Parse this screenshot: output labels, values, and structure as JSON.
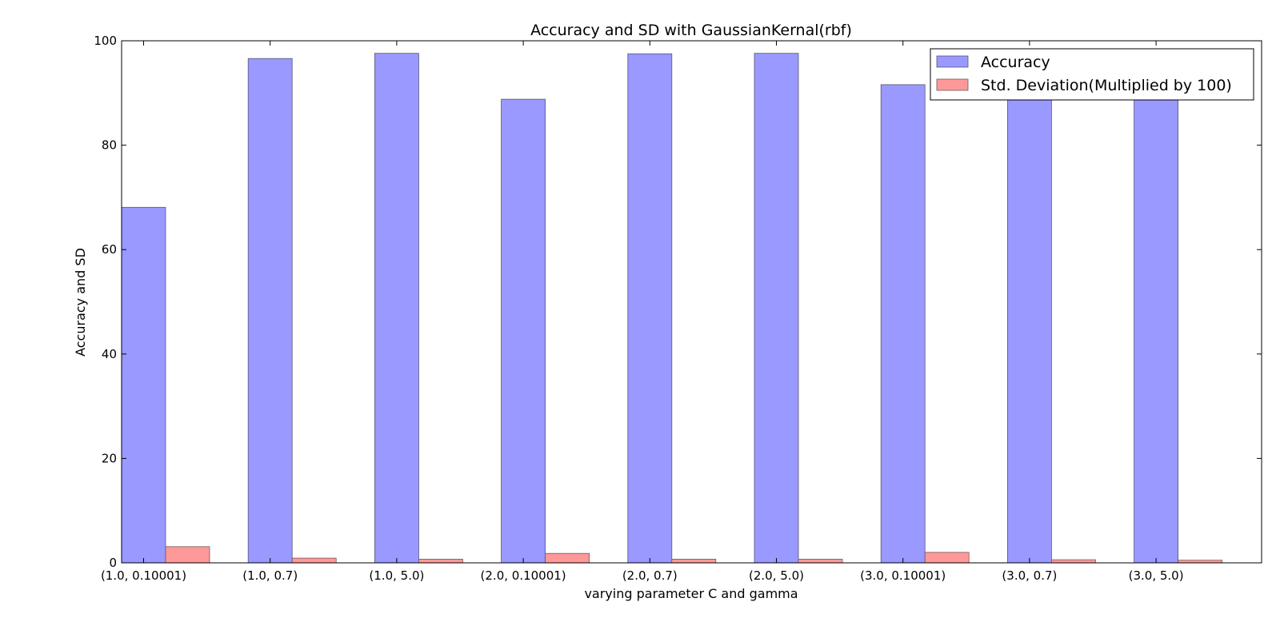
{
  "chart_data": {
    "type": "bar",
    "title": "Accuracy and SD with GaussianKernal(rbf)",
    "xlabel": "varying  parameter C and gamma",
    "ylabel": "Accuracy and SD",
    "categories": [
      "(1.0, 0.10001)",
      "(1.0, 0.7)",
      "(1.0, 5.0)",
      "(2.0, 0.10001)",
      "(2.0, 0.7)",
      "(2.0, 5.0)",
      "(3.0, 0.10001)",
      "(3.0, 0.7)",
      "(3.0, 5.0)"
    ],
    "series": [
      {
        "name": "Accuracy",
        "color": "#9999ff",
        "values": [
          68.1,
          96.6,
          97.6,
          88.8,
          97.5,
          97.6,
          91.6,
          89.0,
          89.0
        ]
      },
      {
        "name": "Std. Deviation(Multiplied by 100)",
        "color": "#ff9999",
        "values": [
          3.1,
          0.9,
          0.7,
          1.8,
          0.7,
          0.7,
          2.0,
          0.6,
          0.5
        ]
      }
    ],
    "ylim": [
      0,
      100
    ],
    "yticks": [
      0,
      20,
      40,
      60,
      80,
      100
    ],
    "grid": false,
    "legend_position": "top-right"
  }
}
